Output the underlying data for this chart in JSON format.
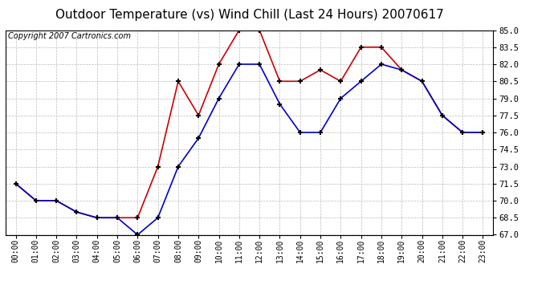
{
  "title": "Outdoor Temperature (vs) Wind Chill (Last 24 Hours) 20070617",
  "copyright_text": "Copyright 2007 Cartronics.com",
  "x_labels": [
    "00:00",
    "01:00",
    "02:00",
    "03:00",
    "04:00",
    "05:00",
    "06:00",
    "07:00",
    "08:00",
    "09:00",
    "10:00",
    "11:00",
    "12:00",
    "13:00",
    "14:00",
    "15:00",
    "16:00",
    "17:00",
    "18:00",
    "19:00",
    "20:00",
    "21:00",
    "22:00",
    "23:00"
  ],
  "temp_red": [
    71.5,
    70.0,
    70.0,
    69.0,
    68.5,
    68.5,
    68.5,
    73.0,
    80.5,
    77.5,
    82.0,
    85.0,
    85.0,
    80.5,
    80.5,
    81.5,
    80.5,
    83.5,
    83.5,
    81.5,
    80.5,
    77.5,
    76.0,
    76.0
  ],
  "wind_blue": [
    71.5,
    70.0,
    70.0,
    69.0,
    68.5,
    68.5,
    67.0,
    68.5,
    73.0,
    75.5,
    79.0,
    82.0,
    82.0,
    78.5,
    76.0,
    76.0,
    79.0,
    80.5,
    82.0,
    81.5,
    80.5,
    77.5,
    76.0,
    76.0
  ],
  "ylim_min": 67.0,
  "ylim_max": 85.0,
  "yticks": [
    67.0,
    68.5,
    70.0,
    71.5,
    73.0,
    74.5,
    76.0,
    77.5,
    79.0,
    80.5,
    82.0,
    83.5,
    85.0
  ],
  "red_color": "#cc0000",
  "blue_color": "#0000cc",
  "bg_color": "#ffffff",
  "grid_color": "#bbbbbb",
  "title_fontsize": 11,
  "copyright_fontsize": 7,
  "tick_fontsize": 7,
  "ytick_fontsize": 7.5
}
